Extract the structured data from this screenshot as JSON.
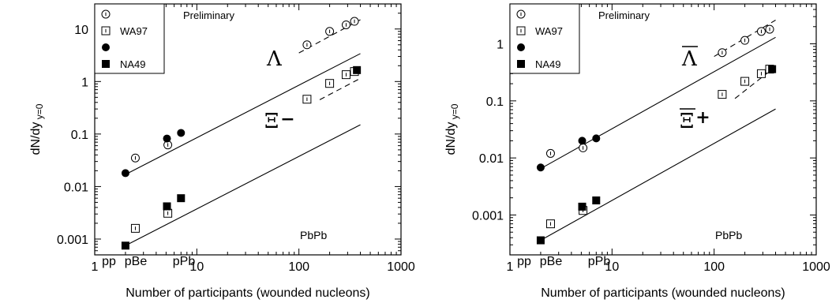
{
  "chart_data": [
    {
      "type": "scatter",
      "x_scale": "log",
      "y_scale": "log",
      "xlim": [
        1,
        1000
      ],
      "ylim": [
        0.0005,
        30
      ],
      "xlabel": "Number of participants (wounded nucleons)",
      "ylabel": "dN/dy",
      "ylabel_subscript": "y=0",
      "x_ticks": [
        "1",
        "10",
        "100",
        "1000"
      ],
      "y_ticks": [
        "0.001",
        "0.01",
        "0.1",
        "1",
        "10"
      ],
      "x_categories": [
        "pp",
        "pBe",
        "pPb"
      ],
      "note": "Preliminary",
      "system_label": "PbPb",
      "legend": [
        {
          "label": "",
          "marker": "circle-open"
        },
        {
          "label": "WA97",
          "marker": "square-open"
        },
        {
          "label": "",
          "marker": "circle-filled"
        },
        {
          "label": "NA49",
          "marker": "square-filled"
        }
      ],
      "particle_labels": [
        {
          "text": "Λ",
          "sup": "",
          "bar": false
        },
        {
          "text": "Ξ",
          "sup": "−",
          "bar": false
        }
      ],
      "series": [
        {
          "marker": "circle-open",
          "points": [
            [
              2.5,
              0.035
            ],
            [
              5.2,
              0.062
            ],
            [
              120,
              5.0
            ],
            [
              200,
              9.0
            ],
            [
              290,
              12.0
            ],
            [
              350,
              14.0
            ]
          ]
        },
        {
          "marker": "circle-filled",
          "points": [
            [
              2,
              0.018
            ],
            [
              5.1,
              0.082
            ],
            [
              7,
              0.105
            ]
          ]
        },
        {
          "marker": "square-open",
          "points": [
            [
              2.5,
              0.0016
            ],
            [
              5.2,
              0.0031
            ],
            [
              120,
              0.46
            ],
            [
              200,
              0.92
            ],
            [
              290,
              1.35
            ],
            [
              350,
              1.55
            ]
          ]
        },
        {
          "marker": "square-filled",
          "points": [
            [
              2,
              0.00075
            ],
            [
              5.1,
              0.0042
            ],
            [
              7,
              0.006
            ],
            [
              370,
              1.65
            ]
          ]
        }
      ],
      "lines": [
        {
          "style": "solid",
          "x": [
            2,
            400
          ],
          "y": [
            0.017,
            3.4
          ]
        },
        {
          "style": "solid",
          "x": [
            2,
            400
          ],
          "y": [
            0.00075,
            0.15
          ]
        },
        {
          "style": "dashed",
          "x": [
            100,
            400
          ],
          "y": [
            3.5,
            15
          ]
        },
        {
          "style": "dashed",
          "x": [
            160,
            400
          ],
          "y": [
            0.45,
            1.15
          ]
        }
      ]
    },
    {
      "type": "scatter",
      "x_scale": "log",
      "y_scale": "log",
      "xlim": [
        1,
        1000
      ],
      "ylim": [
        0.0002,
        5
      ],
      "xlabel": "Number of participants (wounded nucleons)",
      "ylabel": "dN/dy",
      "ylabel_subscript": "y=0",
      "x_ticks": [
        "1",
        "10",
        "100",
        "1000"
      ],
      "y_ticks": [
        "0.001",
        "0.01",
        "0.1",
        "1"
      ],
      "x_categories": [
        "pp",
        "pBe",
        "pPb"
      ],
      "note": "Preliminary",
      "system_label": "PbPb",
      "legend": [
        {
          "label": "",
          "marker": "circle-open"
        },
        {
          "label": "WA97",
          "marker": "square-open"
        },
        {
          "label": "",
          "marker": "circle-filled"
        },
        {
          "label": "NA49",
          "marker": "square-filled"
        }
      ],
      "particle_labels": [
        {
          "text": "Λ",
          "sup": "",
          "bar": true
        },
        {
          "text": "Ξ",
          "sup": "+",
          "bar": true
        }
      ],
      "series": [
        {
          "marker": "circle-open",
          "points": [
            [
              2.5,
              0.012
            ],
            [
              5.2,
              0.015
            ],
            [
              120,
              0.7
            ],
            [
              200,
              1.15
            ],
            [
              290,
              1.65
            ],
            [
              350,
              1.8
            ]
          ]
        },
        {
          "marker": "circle-filled",
          "points": [
            [
              2,
              0.0068
            ],
            [
              5.1,
              0.02
            ],
            [
              7,
              0.022
            ]
          ]
        },
        {
          "marker": "square-open",
          "points": [
            [
              2.5,
              0.0007
            ],
            [
              5.2,
              0.0012
            ],
            [
              120,
              0.13
            ],
            [
              200,
              0.22
            ],
            [
              290,
              0.3
            ],
            [
              350,
              0.36
            ]
          ]
        },
        {
          "marker": "square-filled",
          "points": [
            [
              2,
              0.00036
            ],
            [
              5.1,
              0.0014
            ],
            [
              7,
              0.0018
            ],
            [
              370,
              0.36
            ]
          ]
        }
      ],
      "lines": [
        {
          "style": "solid",
          "x": [
            2,
            400
          ],
          "y": [
            0.0065,
            1.3
          ]
        },
        {
          "style": "solid",
          "x": [
            2,
            400
          ],
          "y": [
            0.00036,
            0.072
          ]
        },
        {
          "style": "dashed",
          "x": [
            100,
            400
          ],
          "y": [
            0.6,
            2.6
          ]
        },
        {
          "style": "dashed",
          "x": [
            160,
            400
          ],
          "y": [
            0.11,
            0.4
          ]
        }
      ]
    }
  ]
}
